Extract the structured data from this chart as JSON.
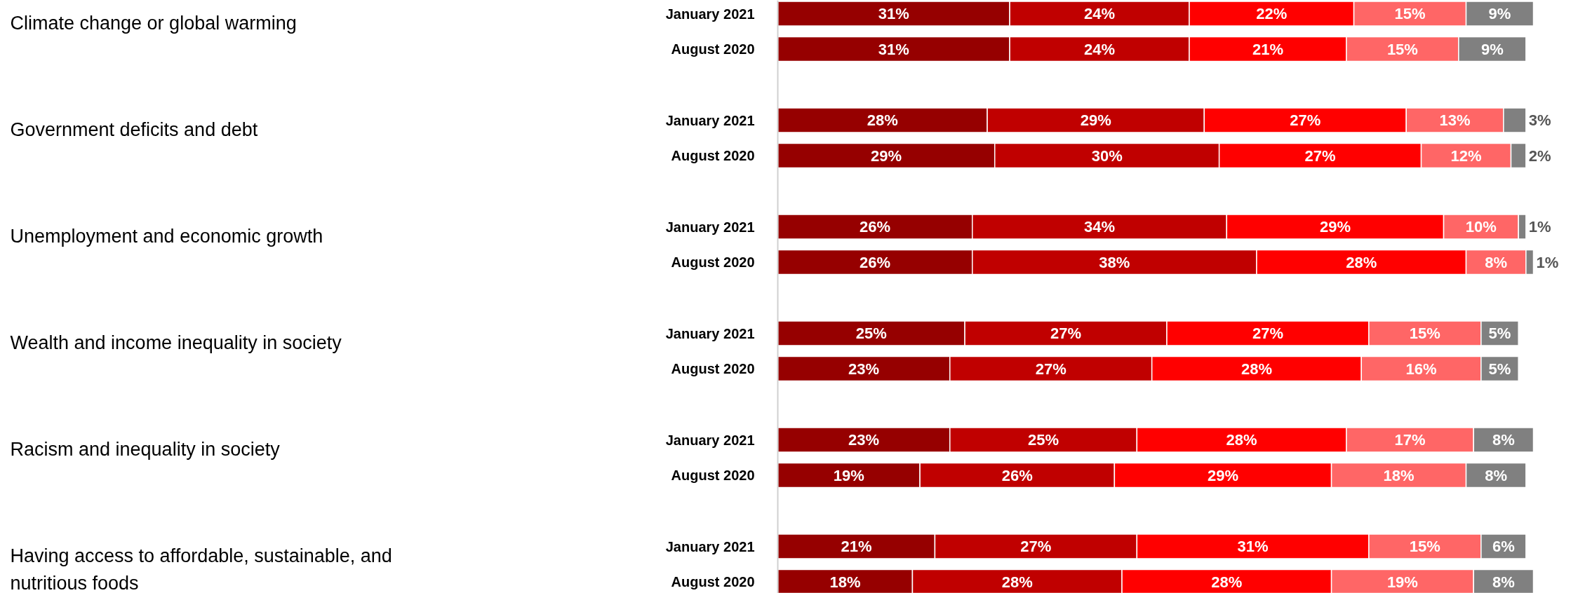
{
  "chart_data": {
    "type": "bar",
    "orientation": "horizontal",
    "stacked": true,
    "categories": [
      "January 2021",
      "August 2020",
      "January 2021",
      "August 2020",
      "January 2021",
      "August 2020",
      "January 2021",
      "August 2020",
      "January 2021",
      "August 2020",
      "January 2021",
      "August 2020"
    ],
    "annotations": [
      "Climate change or global warming",
      "Government deficits and debt",
      "Unemployment and economic growth",
      "Wealth and income inequality in society",
      "Racism and inequality in society",
      "Having access to affordable, sustainable, and nutritious foods"
    ],
    "xlim": [
      0,
      101
    ],
    "series": [
      {
        "color": "#960000",
        "values": [
          31,
          31,
          28,
          29,
          26,
          26,
          25,
          23,
          23,
          19,
          21,
          18
        ],
        "value_labels": [
          "31%",
          "31%",
          "28%",
          "29%",
          "26%",
          "26%",
          "25%",
          "23%",
          "23%",
          "19%",
          "21%",
          "18%"
        ]
      },
      {
        "color": "#c00000",
        "values": [
          24,
          24,
          29,
          30,
          34,
          38,
          27,
          27,
          25,
          26,
          27,
          28
        ],
        "value_labels": [
          "24%",
          "24%",
          "29%",
          "30%",
          "34%",
          "38%",
          "27%",
          "27%",
          "25%",
          "26%",
          "27%",
          "28%"
        ]
      },
      {
        "color": "#ff0000",
        "values": [
          22,
          21,
          27,
          27,
          29,
          28,
          27,
          28,
          28,
          29,
          31,
          28
        ],
        "value_labels": [
          "22%",
          "21%",
          "27%",
          "27%",
          "29%",
          "28%",
          "27%",
          "28%",
          "28%",
          "29%",
          "31%",
          "28%"
        ]
      },
      {
        "color": "#ff6666",
        "values": [
          15,
          15,
          13,
          12,
          10,
          8,
          15,
          16,
          17,
          18,
          15,
          19
        ],
        "value_labels": [
          "15%",
          "15%",
          "13%",
          "12%",
          "10%",
          "8%",
          "15%",
          "16%",
          "17%",
          "18%",
          "15%",
          "19%"
        ]
      },
      {
        "color": "#808080",
        "values": [
          9,
          9,
          3,
          2,
          1,
          1,
          5,
          5,
          8,
          8,
          6,
          8
        ],
        "value_labels": [
          "9%",
          "9%",
          "3%",
          "2%",
          "1%",
          "1%",
          "5%",
          "5%",
          "8%",
          "8%",
          "6%",
          "8%"
        ]
      }
    ]
  }
}
